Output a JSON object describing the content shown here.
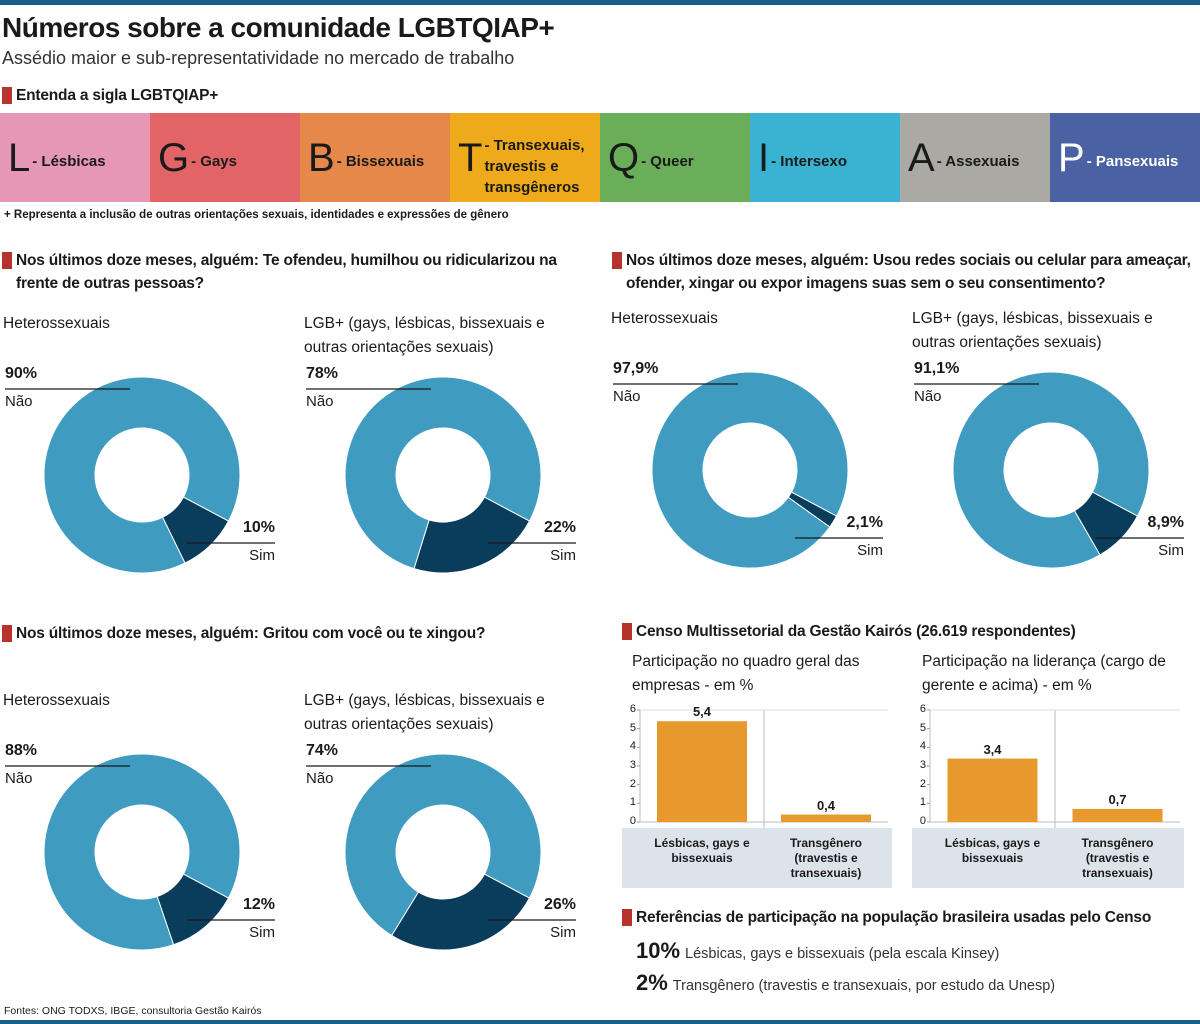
{
  "header": {
    "title": "Números sobre a comunidade LGBTQIAP+",
    "subtitle": "Assédio maior e sub-representatividade no mercado de trabalho"
  },
  "acronym": {
    "title": "Entenda a sigla LGBTQIAP+",
    "items": [
      {
        "letter": "L",
        "label": "- Lésbicas",
        "color": "#e597b4"
      },
      {
        "letter": "G",
        "label": "- Gays",
        "color": "#e26467"
      },
      {
        "letter": "B",
        "label": "- Bissexuais",
        "color": "#e6884a"
      },
      {
        "letter": "T",
        "label": "- Transexuais, travestis e transgêneros",
        "color": "#eeaa1a"
      },
      {
        "letter": "Q",
        "label": "- Queer",
        "color": "#6aae5a"
      },
      {
        "letter": "I",
        "label": "- Intersexo",
        "color": "#3ab3d2"
      },
      {
        "letter": "A",
        "label": "- Assexuais",
        "color": "#aaa9a4"
      },
      {
        "letter": "P",
        "label": "- Pansexuais",
        "color": "#4a62a3"
      }
    ],
    "note": "+ Representa a inclusão de outras orientações sexuais, identidades e expressões de gênero"
  },
  "sections": [
    "Nos últimos doze meses, alguém: Te ofendeu, humilhou ou ridicularizou na frente de outras pessoas?",
    "Nos últimos doze meses, alguém: Usou redes sociais ou celular para ameaçar, ofender, xingar ou expor imagens suas sem o seu consentimento?",
    "Nos últimos doze meses, alguém: Gritou com você ou te xingou?"
  ],
  "census": {
    "title": "Censo Multissetorial da Gestão Kairós (26.619 respondentes)",
    "references_title": "Referências de participação na população brasileira usadas pelo Censo",
    "references": [
      {
        "value": "10%",
        "text": "Lésbicas, gays e bissexuais (pela escala Kinsey)"
      },
      {
        "value": "2%",
        "text": "Transgênero (travestis e transexuais, por estudo da Unesp)"
      }
    ]
  },
  "source": "Fontes: ONG TODXS, IBGE, consultoria Gestão Kairós",
  "chart_data": [
    {
      "type": "donut",
      "title": "Heterossexuais",
      "categories": [
        "Não",
        "Sim"
      ],
      "values": [
        90,
        10
      ],
      "value_labels": [
        "90%",
        "10%"
      ],
      "colors": [
        "#3f9cc0",
        "#0a3c5c"
      ]
    },
    {
      "type": "donut",
      "title": "LGB+ (gays, lésbicas, bissexuais e outras orientações sexuais)",
      "categories": [
        "Não",
        "Sim"
      ],
      "values": [
        78,
        22
      ],
      "value_labels": [
        "78%",
        "22%"
      ],
      "colors": [
        "#3f9cc0",
        "#0a3c5c"
      ]
    },
    {
      "type": "donut",
      "title": "Heterossexuais",
      "categories": [
        "Não",
        "Sim"
      ],
      "values": [
        97.9,
        2.1
      ],
      "value_labels": [
        "97,9%",
        "2,1%"
      ],
      "colors": [
        "#3f9cc0",
        "#0a3c5c"
      ]
    },
    {
      "type": "donut",
      "title": "LGB+ (gays, lésbicas, bissexuais e outras orientações sexuais)",
      "categories": [
        "Não",
        "Sim"
      ],
      "values": [
        91.1,
        8.9
      ],
      "value_labels": [
        "91,1%",
        "8,9%"
      ],
      "colors": [
        "#3f9cc0",
        "#0a3c5c"
      ]
    },
    {
      "type": "donut",
      "title": "Heterossexuais",
      "categories": [
        "Não",
        "Sim"
      ],
      "values": [
        88,
        12
      ],
      "value_labels": [
        "88%",
        "12%"
      ],
      "colors": [
        "#3f9cc0",
        "#0a3c5c"
      ]
    },
    {
      "type": "donut",
      "title": "LGB+ (gays, lésbicas, bissexuais e outras orientações sexuais)",
      "categories": [
        "Não",
        "Sim"
      ],
      "values": [
        74,
        26
      ],
      "value_labels": [
        "74%",
        "26%"
      ],
      "colors": [
        "#3f9cc0",
        "#0a3c5c"
      ]
    },
    {
      "type": "bar",
      "title": "Participação no quadro geral das empresas - em %",
      "categories": [
        "Lésbicas, gays e bissexuais",
        "Transgênero (travestis e transexuais)"
      ],
      "values": [
        5.4,
        0.4
      ],
      "value_labels": [
        "5,4",
        "0,4"
      ],
      "color": "#e8992e",
      "ylim": [
        0,
        6
      ],
      "yticks": [
        0,
        1,
        2,
        3,
        4,
        5,
        6
      ]
    },
    {
      "type": "bar",
      "title": "Participação na liderança (cargo de gerente e acima) - em %",
      "categories": [
        "Lésbicas, gays e bissexuais",
        "Transgênero (travestis e transexuais)"
      ],
      "values": [
        3.4,
        0.7
      ],
      "value_labels": [
        "3,4",
        "0,7"
      ],
      "color": "#e8992e",
      "ylim": [
        0,
        6
      ],
      "yticks": [
        0,
        1,
        2,
        3,
        4,
        5,
        6
      ]
    }
  ]
}
